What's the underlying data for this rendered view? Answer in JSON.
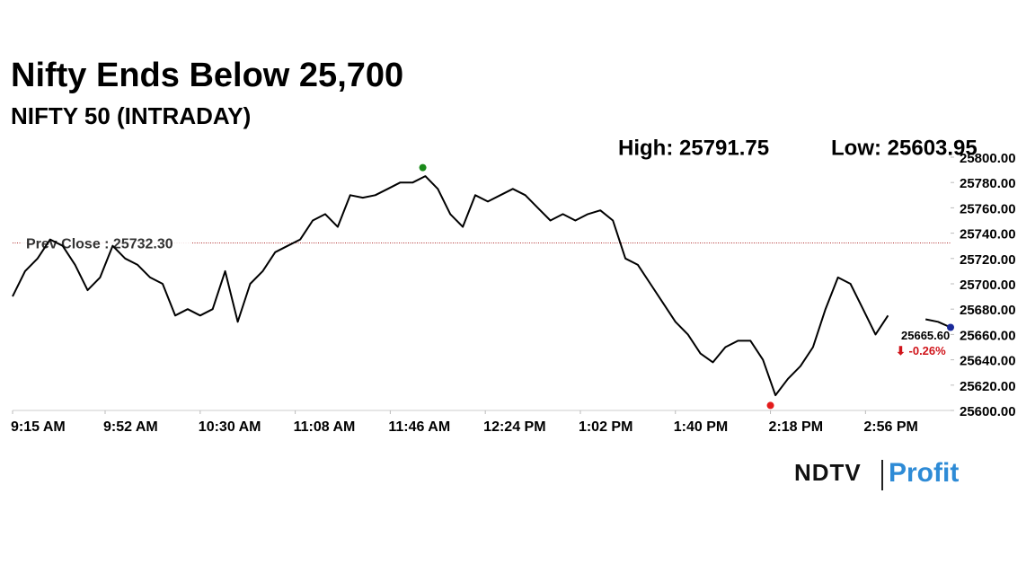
{
  "chart_data": {
    "type": "line",
    "title": "Nifty Ends Below 25,700",
    "subtitle": "NIFTY 50 (INTRADAY)",
    "high": {
      "x": "11:59 AM",
      "value": 25791.75,
      "label": "High: 25791.75",
      "color": "#1a8a1a"
    },
    "low": {
      "x": "2:18 PM",
      "value": 25603.95,
      "label": "Low: 25603.95",
      "color": "#e31b1b"
    },
    "prev_close": {
      "value": 25732.3,
      "label": "Prev Close : 25732.30",
      "color": "#b03030"
    },
    "last_label": "25665.60",
    "change_label": "⬇ -0.26%",
    "change_color": "#d0141a",
    "last_color": "#1a2a9a",
    "x": [
      "9:15 AM",
      "9:20 AM",
      "9:25 AM",
      "9:30 AM",
      "9:35 AM",
      "9:40 AM",
      "9:45 AM",
      "9:50 AM",
      "9:55 AM",
      "10:00 AM",
      "10:05 AM",
      "10:10 AM",
      "10:15 AM",
      "10:20 AM",
      "10:25 AM",
      "10:30 AM",
      "10:35 AM",
      "10:40 AM",
      "10:45 AM",
      "10:50 AM",
      "10:55 AM",
      "11:00 AM",
      "11:05 AM",
      "11:10 AM",
      "11:15 AM",
      "11:20 AM",
      "11:25 AM",
      "11:30 AM",
      "11:35 AM",
      "11:40 AM",
      "11:45 AM",
      "11:50 AM",
      "11:55 AM",
      "12:00 PM",
      "12:05 PM",
      "12:10 PM",
      "12:15 PM",
      "12:20 PM",
      "12:25 PM",
      "12:30 PM",
      "12:35 PM",
      "12:40 PM",
      "12:45 PM",
      "12:50 PM",
      "12:55 PM",
      "1:00 PM",
      "1:05 PM",
      "1:10 PM",
      "1:15 PM",
      "1:20 PM",
      "1:25 PM",
      "1:30 PM",
      "1:35 PM",
      "1:40 PM",
      "1:45 PM",
      "1:50 PM",
      "1:55 PM",
      "2:00 PM",
      "2:05 PM",
      "2:10 PM",
      "2:15 PM",
      "2:20 PM",
      "2:25 PM",
      "2:30 PM",
      "2:35 PM",
      "2:40 PM",
      "2:45 PM",
      "2:50 PM",
      "2:55 PM",
      "3:00 PM",
      "3:05 PM",
      "3:10 PM",
      "3:15 PM",
      "3:20 PM",
      "3:25 PM",
      "3:30 PM"
    ],
    "series": [
      {
        "name": "NIFTY 50",
        "color": "#000000",
        "values": [
          25690,
          25710,
          25720,
          25735,
          25730,
          25715,
          25695,
          25705,
          25730,
          25720,
          25715,
          25705,
          25700,
          25675,
          25680,
          25675,
          25680,
          25710,
          25670,
          25700,
          25710,
          25725,
          25730,
          25735,
          25750,
          25755,
          25745,
          25770,
          25768,
          25770,
          25775,
          25780,
          25780,
          25785,
          25775,
          25755,
          25745,
          25770,
          25765,
          25770,
          25775,
          25770,
          25760,
          25750,
          25755,
          25750,
          25755,
          25758,
          25750,
          25720,
          25715,
          25700,
          25685,
          25670,
          25660,
          25645,
          25638,
          25650,
          25655,
          25655,
          25640,
          25612,
          25625,
          25635,
          25650,
          25680,
          25705,
          25700,
          25680,
          25660,
          25675,
          null,
          null,
          25672,
          25670,
          25665.6
        ]
      }
    ],
    "xlim": [
      "9:15 AM",
      "3:30 PM"
    ],
    "xticks": [
      "9:15 AM",
      "9:52 AM",
      "10:30 AM",
      "11:08 AM",
      "11:46 AM",
      "12:24 PM",
      "1:02 PM",
      "1:40 PM",
      "2:18 PM",
      "2:56 PM"
    ],
    "ylim": [
      25600,
      25800
    ],
    "yticks": [
      {
        "value": 25600,
        "label": "25600.00"
      },
      {
        "value": 25620,
        "label": "25620.00"
      },
      {
        "value": 25640,
        "label": "25640.00"
      },
      {
        "value": 25660,
        "label": "25660.00"
      },
      {
        "value": 25680,
        "label": "25680.00"
      },
      {
        "value": 25700,
        "label": "25700.00"
      },
      {
        "value": 25720,
        "label": "25720.00"
      },
      {
        "value": 25740,
        "label": "25740.00"
      },
      {
        "value": 25760,
        "label": "25760.00"
      },
      {
        "value": 25780,
        "label": "25780.00"
      },
      {
        "value": 25800,
        "label": "25800.00"
      }
    ],
    "grid": false,
    "brand": {
      "name": "NDTV",
      "product": "Profit"
    }
  }
}
